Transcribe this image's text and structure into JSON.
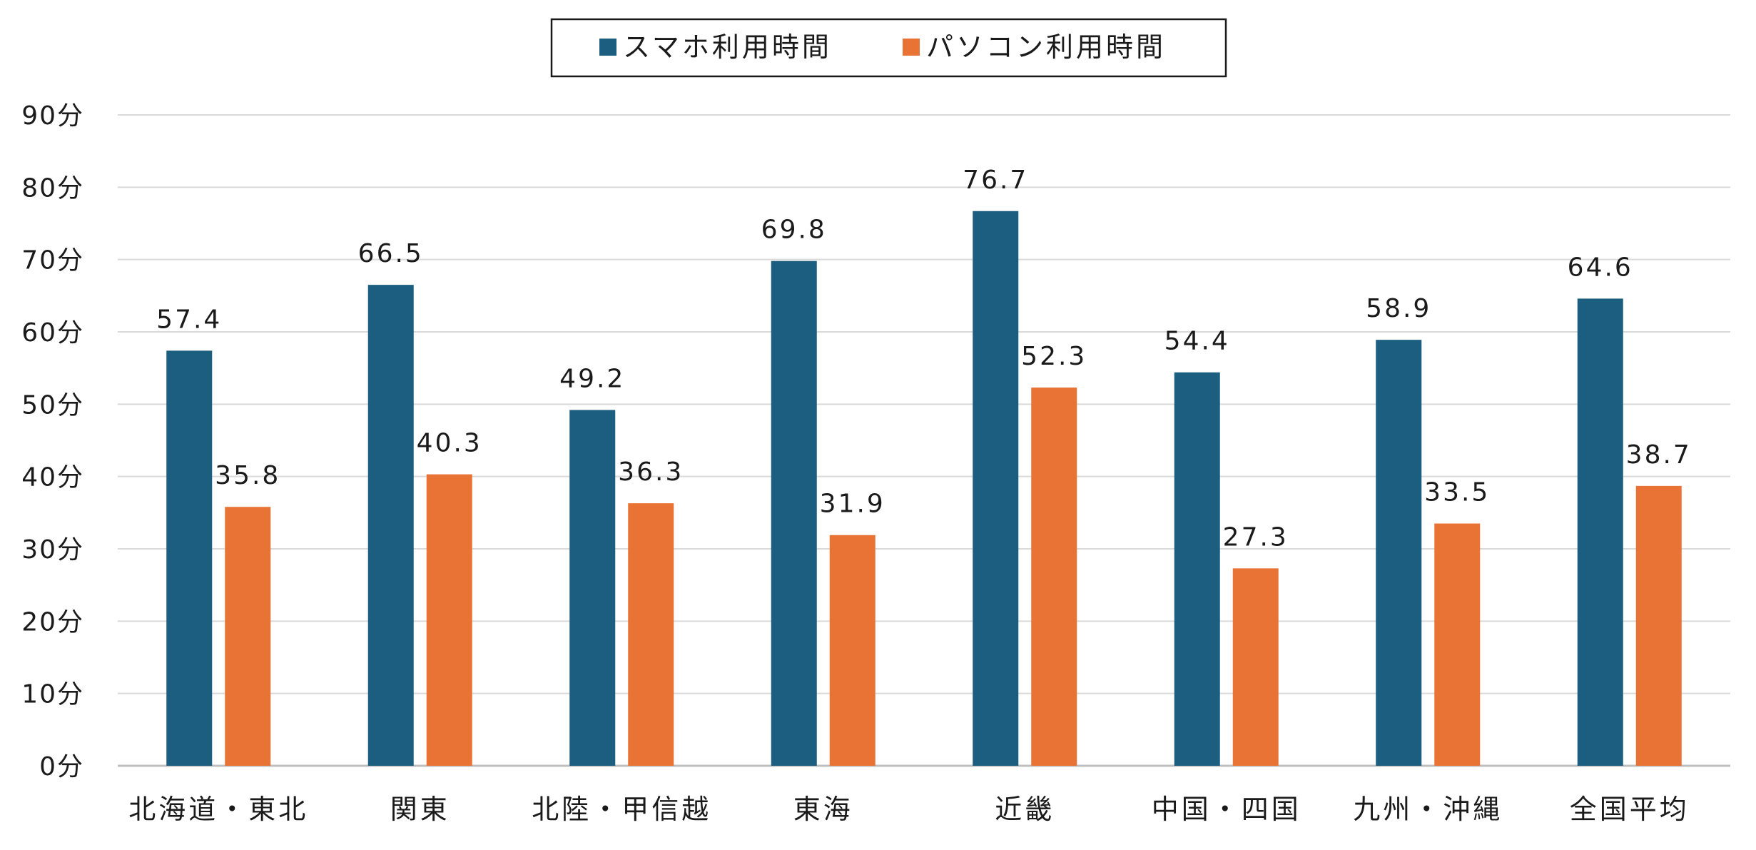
{
  "chart_data": {
    "type": "bar",
    "categories": [
      "北海道・東北",
      "関東",
      "北陸・甲信越",
      "東海",
      "近畿",
      "中国・四国",
      "九州・沖縄",
      "全国平均"
    ],
    "series": [
      {
        "name": "スマホ利用時間",
        "color": "#1b5e80",
        "values": [
          57.4,
          66.5,
          49.2,
          69.8,
          76.7,
          54.4,
          58.9,
          64.6
        ]
      },
      {
        "name": "パソコン利用時間",
        "color": "#e87335",
        "values": [
          35.8,
          40.3,
          36.3,
          31.9,
          52.3,
          27.3,
          33.5,
          38.7
        ]
      }
    ],
    "value_labels": [
      [
        "57.4",
        "66.5",
        "49.2",
        "69.8",
        "76.7",
        "54.4",
        "58.9",
        "64.6"
      ],
      [
        "35.8",
        "40.3",
        "36.3",
        "31.9",
        "52.3",
        "27.3",
        "33.5",
        "38.7"
      ]
    ],
    "yticks": [
      0,
      10,
      20,
      30,
      40,
      50,
      60,
      70,
      80,
      90
    ],
    "ytick_labels": [
      "0分",
      "10分",
      "20分",
      "30分",
      "40分",
      "50分",
      "60分",
      "70分",
      "80分",
      "90分"
    ],
    "ylim": [
      0,
      90
    ],
    "grid": true,
    "legend_position": "top-center",
    "title": "",
    "xlabel": "",
    "ylabel": ""
  }
}
